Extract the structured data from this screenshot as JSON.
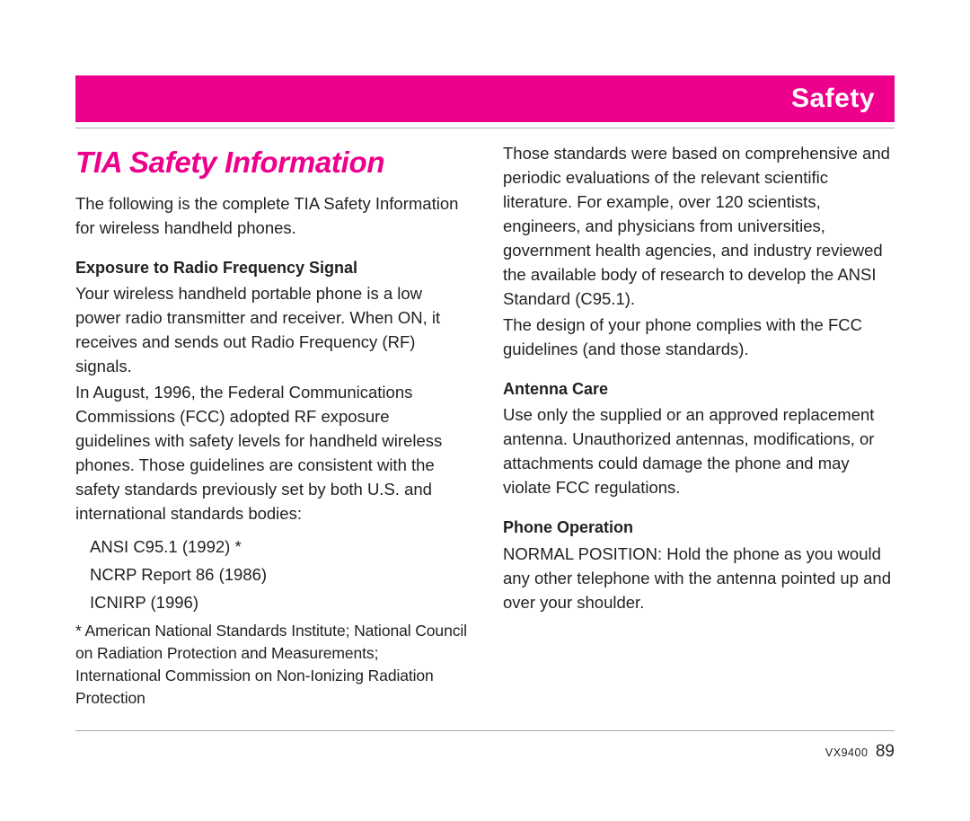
{
  "header": {
    "title": "Safety",
    "band_color": "#ec008c",
    "text_color": "#ffffff"
  },
  "left": {
    "section_title": "TIA Safety Information",
    "intro": "The following is the complete TIA Safety Information for wireless handheld phones.",
    "sub1": "Exposure to Radio Frequency Signal",
    "p1": "Your wireless handheld portable phone is a low power radio transmitter and receiver. When ON, it receives and sends out Radio Frequency (RF) signals.",
    "p2": "In August, 1996, the Federal Communications Commissions (FCC) adopted RF exposure guidelines with safety levels for handheld wireless phones. Those guidelines are consistent with the safety standards previously set by both U.S. and international standards bodies:",
    "std1": "ANSI C95.1 (1992) *",
    "std2": "NCRP Report 86 (1986)",
    "std3": "ICNIRP (1996)",
    "footnote": "*  American National Standards Institute; National Council on Radiation Protection and Measurements; International Commission on  Non-Ionizing Radiation Protection"
  },
  "right": {
    "p1": "Those standards were based on comprehensive and periodic evaluations of the relevant scientific literature. For example, over 120 scientists, engineers, and physicians from universities, government health agencies, and industry reviewed the available body of research to develop the ANSI Standard (C95.1).",
    "p2": "The design of your phone complies with the FCC guidelines (and those standards).",
    "sub2": "Antenna Care",
    "p3": "Use only the supplied or an approved replacement antenna. Unauthorized antennas, modifications, or attachments could damage the phone and may violate FCC regulations.",
    "sub3": "Phone Operation",
    "p4": "NORMAL POSITION: Hold the phone as you would any other telephone with the antenna pointed up and over your shoulder."
  },
  "footer": {
    "model": "VX9400",
    "page": "89"
  },
  "colors": {
    "accent": "#ec008c",
    "rule": "#a7a9ac",
    "text": "#231f20",
    "bg": "#ffffff"
  }
}
